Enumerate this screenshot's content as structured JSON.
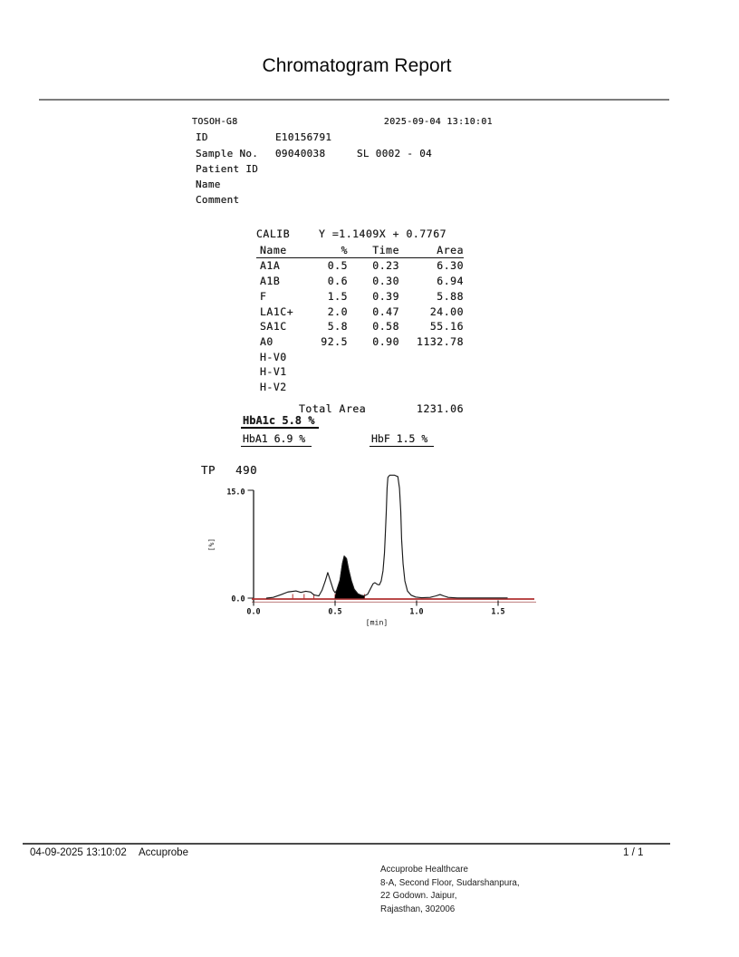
{
  "title": "Chromatogram Report",
  "device": {
    "model": "TOSOH-G8",
    "datetime": "2025-09-04 13:10:01",
    "fields": [
      {
        "label": "ID",
        "value": "E10156791",
        "extra": ""
      },
      {
        "label": "Sample No.",
        "value": "09040038",
        "extra": "SL 0002 - 04"
      },
      {
        "label": "Patient ID",
        "value": "",
        "extra": ""
      },
      {
        "label": "Name",
        "value": "",
        "extra": ""
      },
      {
        "label": "Comment",
        "value": "",
        "extra": ""
      }
    ]
  },
  "calib": {
    "label": "CALIB",
    "equation": "Y =1.1409X + 0.7767",
    "columns": [
      "Name",
      "%",
      "Time",
      "Area"
    ],
    "rows": [
      [
        "A1A",
        "0.5",
        "0.23",
        "6.30"
      ],
      [
        "A1B",
        "0.6",
        "0.30",
        "6.94"
      ],
      [
        "F",
        "1.5",
        "0.39",
        "5.88"
      ],
      [
        "LA1C+",
        "2.0",
        "0.47",
        "24.00"
      ],
      [
        "SA1C",
        "5.8",
        "0.58",
        "55.16"
      ],
      [
        "A0",
        "92.5",
        "0.90",
        "1132.78"
      ],
      [
        "H-V0",
        "",
        "",
        ""
      ],
      [
        "H-V1",
        "",
        "",
        ""
      ],
      [
        "H-V2",
        "",
        "",
        ""
      ]
    ],
    "total_label": "Total Area",
    "total_value": "1231.06"
  },
  "results": {
    "hba1c": "HbA1c 5.8 %",
    "hba1": "HbA1 6.9 %",
    "hbf": "HbF 1.5 %"
  },
  "chart_data": {
    "type": "line",
    "title": "TP 490",
    "tp_label": "TP",
    "tp_value": "490",
    "xlabel": "[min]",
    "ylabel": "[%]",
    "xlim": [
      0,
      1.6
    ],
    "ylim": [
      0,
      15
    ],
    "xticks": [
      0,
      0.5,
      1,
      1.5
    ],
    "xtick_labels": [
      "0.0",
      "0.5",
      "1.0",
      "1.5"
    ],
    "ytick_labels": {
      "min": "0.0",
      "max": "15.0"
    },
    "grid": false,
    "legend": "none",
    "baseline_color": "#b03030",
    "curve_color": "#1a1a1a",
    "filled_peak_name": "SA1C",
    "clipped_peak_name": "A0",
    "peak_boundaries_min": [
      0.24,
      0.31,
      0.37,
      0.5,
      0.68
    ],
    "curve": [
      [
        0.08,
        0
      ],
      [
        0.12,
        0.1
      ],
      [
        0.17,
        0.5
      ],
      [
        0.21,
        0.85
      ],
      [
        0.26,
        1.0
      ],
      [
        0.29,
        0.8
      ],
      [
        0.32,
        0.95
      ],
      [
        0.35,
        0.85
      ],
      [
        0.37,
        0.45
      ],
      [
        0.4,
        0.3
      ],
      [
        0.42,
        1.1
      ],
      [
        0.44,
        2.4
      ],
      [
        0.455,
        3.55
      ],
      [
        0.47,
        2.5
      ],
      [
        0.49,
        1.1
      ],
      [
        0.5,
        0.75
      ],
      [
        0.51,
        1.1
      ],
      [
        0.53,
        2.5
      ],
      [
        0.545,
        4.8
      ],
      [
        0.556,
        5.85
      ],
      [
        0.57,
        5.5
      ],
      [
        0.583,
        4.0
      ],
      [
        0.6,
        2.4
      ],
      [
        0.617,
        1.25
      ],
      [
        0.64,
        0.6
      ],
      [
        0.66,
        0.4
      ],
      [
        0.678,
        0.3
      ],
      [
        0.7,
        0.55
      ],
      [
        0.717,
        1.3
      ],
      [
        0.733,
        2.0
      ],
      [
        0.744,
        2.15
      ],
      [
        0.76,
        1.9
      ],
      [
        0.772,
        1.85
      ],
      [
        0.783,
        2.4
      ],
      [
        0.794,
        3.8
      ],
      [
        0.803,
        6.3
      ],
      [
        0.808,
        8.8
      ],
      [
        0.814,
        12.0
      ],
      [
        0.819,
        15.3
      ],
      [
        0.824,
        16.8
      ],
      [
        0.835,
        17.1
      ],
      [
        0.865,
        17.1
      ],
      [
        0.885,
        16.9
      ],
      [
        0.895,
        15.3
      ],
      [
        0.903,
        12.0
      ],
      [
        0.908,
        8.2
      ],
      [
        0.917,
        4.8
      ],
      [
        0.928,
        2.4
      ],
      [
        0.944,
        1.0
      ],
      [
        0.967,
        0.4
      ],
      [
        0.994,
        0.15
      ],
      [
        1.03,
        0.05
      ],
      [
        1.083,
        0.1
      ],
      [
        1.117,
        0.3
      ],
      [
        1.144,
        0.5
      ],
      [
        1.167,
        0.3
      ],
      [
        1.194,
        0.1
      ],
      [
        1.25,
        0.02
      ],
      [
        1.4,
        0.02
      ],
      [
        1.556,
        0.02
      ]
    ],
    "filled_peak": [
      [
        0.5,
        0
      ],
      [
        0.51,
        1.1
      ],
      [
        0.53,
        2.5
      ],
      [
        0.545,
        4.8
      ],
      [
        0.556,
        5.85
      ],
      [
        0.57,
        5.5
      ],
      [
        0.583,
        4.0
      ],
      [
        0.6,
        2.4
      ],
      [
        0.617,
        1.25
      ],
      [
        0.64,
        0.6
      ],
      [
        0.66,
        0.4
      ],
      [
        0.678,
        0.3
      ],
      [
        0.678,
        0
      ]
    ]
  },
  "footer": {
    "datetime": "04-09-2025 13:10:02",
    "brand": "Accuprobe",
    "page": "1 / 1",
    "address": [
      "Accuprobe Healthcare",
      "8-A, Second Floor, Sudarshanpura,",
      "22 Godown. Jaipur,",
      "Rajasthan, 302006"
    ]
  }
}
